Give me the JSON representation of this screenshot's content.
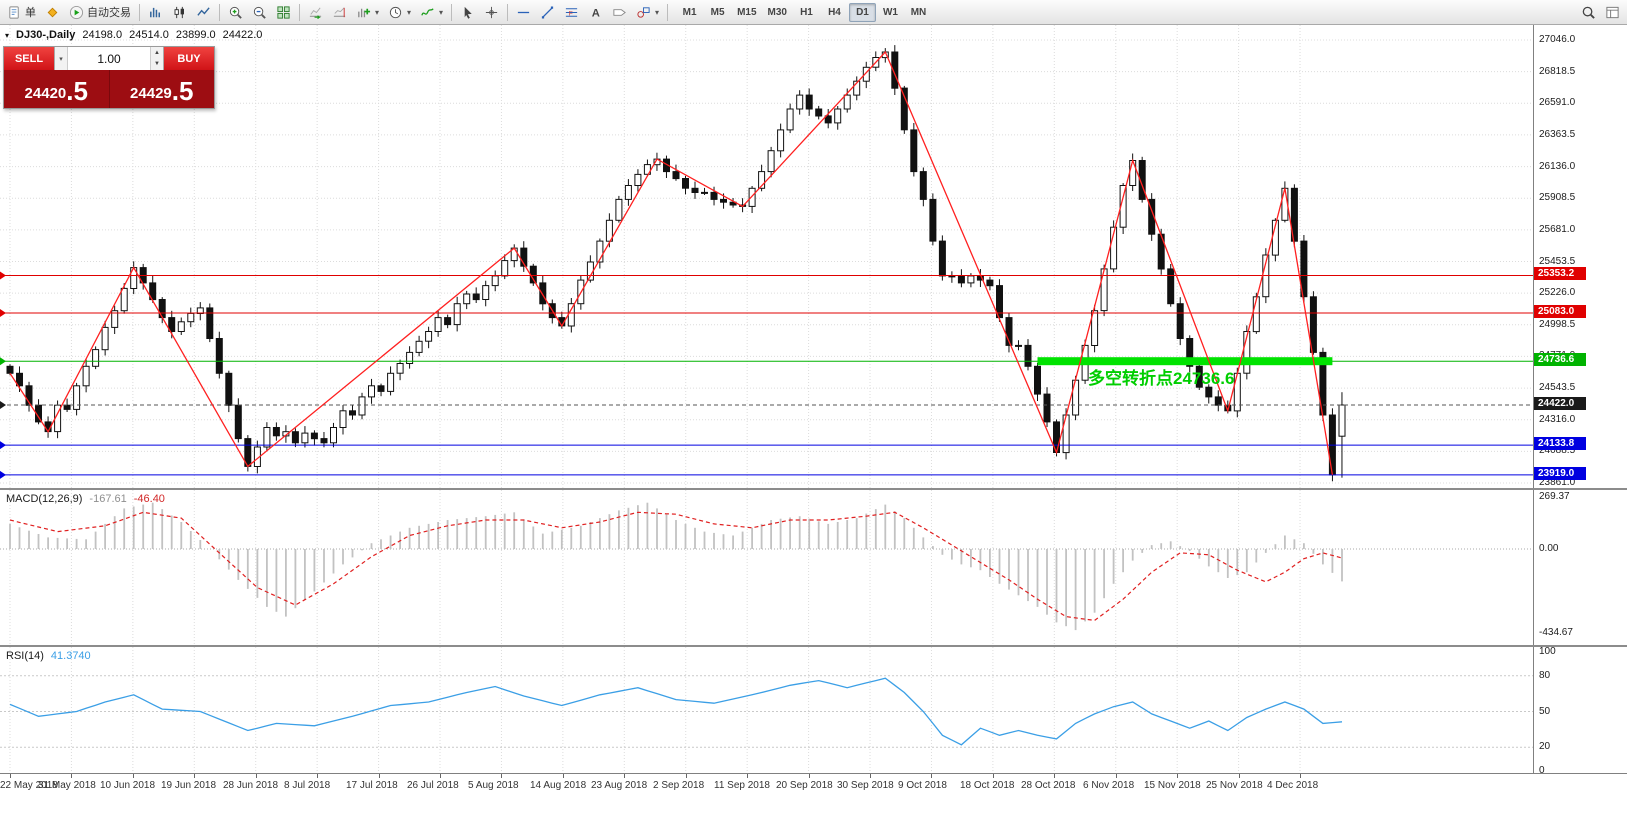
{
  "glyphs": {
    "dropdown": "▾",
    "spin_up": "▲",
    "spin_down": "▼",
    "marker": "▾"
  },
  "toolbar": {
    "items": [
      {
        "id": "new-order",
        "glyph": "doc",
        "label": "单"
      },
      {
        "id": "mql5",
        "glyph": "diamond"
      },
      {
        "id": "autotrade",
        "glyph": "play",
        "label": "自动交易"
      },
      {
        "sep": true
      },
      {
        "id": "bar-chart",
        "glyph": "bars"
      },
      {
        "id": "candle-chart",
        "glyph": "candles"
      },
      {
        "id": "line-chart",
        "glyph": "linechart"
      },
      {
        "sep": true
      },
      {
        "id": "zoom-in",
        "glyph": "zoomin"
      },
      {
        "id": "zoom-out",
        "glyph": "zoomout"
      },
      {
        "id": "tile-windows",
        "glyph": "tile"
      },
      {
        "sep": true
      },
      {
        "id": "auto-scroll",
        "glyph": "scroll"
      },
      {
        "id": "chart-shift",
        "glyph": "shift"
      },
      {
        "id": "new-chart",
        "glyph": "newchart",
        "dropdown": true
      },
      {
        "id": "period",
        "glyph": "clock",
        "dropdown": true
      },
      {
        "id": "indicators",
        "glyph": "indicator",
        "dropdown": true
      },
      {
        "sep": true
      },
      {
        "id": "cursor",
        "glyph": "cursor"
      },
      {
        "id": "crosshair",
        "glyph": "crosshair"
      },
      {
        "sep": true
      },
      {
        "id": "horizontal-line",
        "glyph": "hline"
      },
      {
        "id": "trendline",
        "glyph": "trendline"
      },
      {
        "id": "fibonacci",
        "glyph": "fibo"
      },
      {
        "id": "text",
        "glyph": "textA"
      },
      {
        "id": "label",
        "glyph": "label"
      },
      {
        "id": "shapes",
        "glyph": "shapes",
        "dropdown": true
      },
      {
        "sep": true
      }
    ],
    "timeframes": [
      "M1",
      "M5",
      "M15",
      "M30",
      "H1",
      "H4",
      "D1",
      "W1",
      "MN"
    ],
    "active_timeframe": "D1",
    "right_items": [
      {
        "id": "search",
        "glyph": "search"
      },
      {
        "id": "data-window",
        "glyph": "panelwin"
      }
    ]
  },
  "chart": {
    "symbol_info": {
      "symbol": "DJ30-,Daily",
      "open": "24198.0",
      "high": "24514.0",
      "low": "23899.0",
      "close": "24422.0"
    },
    "trade_panel": {
      "sell_label": "SELL",
      "buy_label": "BUY",
      "volume": "1.00",
      "sell_price": {
        "main": "24420",
        "frac": ".5"
      },
      "buy_price": {
        "main": "24429",
        "frac": ".5"
      }
    },
    "annotation": {
      "text": "多空转折点24736.6"
    },
    "colors": {
      "bull": "#ffffff",
      "bear": "#111111",
      "wick": "#111111",
      "zigzag": "#ff2020",
      "grid": "#dcdcdc",
      "band": "#00e300",
      "macd_hist": "#c2c2c2",
      "macd_signal": "#e02020",
      "rsi_line": "#3b9fe6"
    }
  },
  "indicators": {
    "macd": {
      "name": "MACD(12,26,9)",
      "value1": "-167.61",
      "value2": "-46.40"
    },
    "rsi": {
      "name": "RSI(14)",
      "value": "41.3740"
    }
  },
  "chart_data": [
    {
      "type": "candlestick",
      "symbol": "DJ30",
      "timeframe": "Daily",
      "title": "DJ30-,Daily",
      "y_axis_ticks": [
        27046.0,
        26818.5,
        26591.0,
        26363.5,
        26136.0,
        25908.5,
        25681.0,
        25453.5,
        25226.0,
        24998.5,
        24771.0,
        24543.5,
        24316.0,
        24088.5,
        23861.0
      ],
      "ylim": [
        23790,
        27120
      ],
      "x_tick_labels": [
        "22 May 2018",
        "31 May 2018",
        "10 Jun 2018",
        "19 Jun 2018",
        "28 Jun 2018",
        "8 Jul 2018",
        "17 Jul 2018",
        "26 Jul 2018",
        "5 Aug 2018",
        "14 Aug 2018",
        "23 Aug 2018",
        "2 Sep 2018",
        "11 Sep 2018",
        "20 Sep 2018",
        "30 Sep 2018",
        "9 Oct 2018",
        "18 Oct 2018",
        "28 Oct 2018",
        "6 Nov 2018",
        "15 Nov 2018",
        "25 Nov 2018",
        "4 Dec 2018"
      ],
      "levels": [
        {
          "price": 25353.2,
          "label": "25353.2",
          "color": "#e00000",
          "kind": "resistance"
        },
        {
          "price": 25083.0,
          "label": "25083.0",
          "color": "#e00000",
          "kind": "resistance"
        },
        {
          "price": 24736.6,
          "label": "24736.6",
          "color": "#00b300",
          "kind": "pivot",
          "band": {
            "from_index": 108,
            "to_index": 139
          }
        },
        {
          "price": 24422.0,
          "label": "24422.0",
          "color": "#1a1a1a",
          "kind": "current"
        },
        {
          "price": 24133.8,
          "label": "24133.8",
          "color": "#0000e0",
          "kind": "support"
        },
        {
          "price": 23919.0,
          "label": "23919.0",
          "color": "#0000e0",
          "kind": "support"
        }
      ],
      "closes": [
        24650,
        24560,
        24420,
        24300,
        24230,
        24420,
        24390,
        24560,
        24700,
        24820,
        24980,
        25100,
        25260,
        25410,
        25300,
        25180,
        25050,
        24950,
        25020,
        25080,
        25120,
        24900,
        24650,
        24420,
        24180,
        23980,
        24120,
        24260,
        24200,
        24230,
        24150,
        24220,
        24180,
        24150,
        24260,
        24380,
        24350,
        24480,
        24560,
        24520,
        24650,
        24720,
        24800,
        24880,
        24950,
        25050,
        25000,
        25150,
        25220,
        25180,
        25280,
        25350,
        25460,
        25550,
        25420,
        25300,
        25150,
        25050,
        24990,
        25150,
        25320,
        25450,
        25600,
        25750,
        25900,
        26000,
        26080,
        26150,
        26190,
        26100,
        26050,
        25980,
        25950,
        25950,
        25900,
        25880,
        25860,
        25850,
        25980,
        26100,
        26250,
        26400,
        26550,
        26650,
        26550,
        26500,
        26450,
        26550,
        26650,
        26750,
        26850,
        26920,
        26960,
        26700,
        26400,
        26100,
        25900,
        25600,
        25350,
        25350,
        25300,
        25350,
        25320,
        25280,
        25050,
        24850,
        24850,
        24700,
        24500,
        24300,
        24080,
        24350,
        24600,
        24850,
        25100,
        25400,
        25700,
        26000,
        26180,
        25900,
        25650,
        25400,
        25150,
        24900,
        24700,
        24550,
        24480,
        24420,
        24380,
        24650,
        24950,
        25200,
        25500,
        25750,
        25980,
        25600,
        25200,
        24800,
        24350,
        23920,
        24422
      ],
      "last_candle": {
        "open": 24198.0,
        "high": 24514.0,
        "low": 23899.0,
        "close": 24422.0
      },
      "zigzag_points": [
        [
          0,
          24650
        ],
        [
          4,
          24230
        ],
        [
          13,
          25410
        ],
        [
          25,
          23980
        ],
        [
          53,
          25550
        ],
        [
          58,
          24990
        ],
        [
          68,
          26190
        ],
        [
          77,
          25850
        ],
        [
          92,
          26960
        ],
        [
          110,
          24080
        ],
        [
          118,
          26180
        ],
        [
          128,
          24380
        ],
        [
          134,
          25980
        ],
        [
          139,
          23920
        ]
      ]
    },
    {
      "type": "bar",
      "title": "MACD(12,26,9)",
      "values": [
        -167.61,
        -46.4
      ],
      "y_ticks": [
        {
          "v": 269.37,
          "label": "269.37"
        },
        {
          "v": 0,
          "label": "0.00"
        },
        {
          "v": -434.67,
          "label": "-434.67"
        }
      ],
      "histogram_anchors": [
        [
          0,
          130
        ],
        [
          4,
          60
        ],
        [
          8,
          50
        ],
        [
          12,
          210
        ],
        [
          15,
          240
        ],
        [
          18,
          140
        ],
        [
          21,
          0
        ],
        [
          24,
          -160
        ],
        [
          27,
          -300
        ],
        [
          29,
          -350
        ],
        [
          32,
          -220
        ],
        [
          35,
          -80
        ],
        [
          38,
          30
        ],
        [
          42,
          110
        ],
        [
          46,
          150
        ],
        [
          50,
          170
        ],
        [
          53,
          190
        ],
        [
          56,
          80
        ],
        [
          60,
          120
        ],
        [
          64,
          200
        ],
        [
          67,
          240
        ],
        [
          70,
          150
        ],
        [
          73,
          90
        ],
        [
          76,
          70
        ],
        [
          80,
          150
        ],
        [
          83,
          170
        ],
        [
          86,
          130
        ],
        [
          89,
          160
        ],
        [
          92,
          230
        ],
        [
          94,
          160
        ],
        [
          96,
          60
        ],
        [
          98,
          -30
        ],
        [
          100,
          -80
        ],
        [
          102,
          -110
        ],
        [
          104,
          -180
        ],
        [
          106,
          -240
        ],
        [
          108,
          -300
        ],
        [
          110,
          -380
        ],
        [
          112,
          -420
        ],
        [
          114,
          -330
        ],
        [
          116,
          -180
        ],
        [
          118,
          -60
        ],
        [
          120,
          20
        ],
        [
          122,
          40
        ],
        [
          124,
          -10
        ],
        [
          126,
          -90
        ],
        [
          128,
          -150
        ],
        [
          130,
          -120
        ],
        [
          132,
          -20
        ],
        [
          134,
          70
        ],
        [
          136,
          30
        ],
        [
          138,
          -80
        ],
        [
          140,
          -167.61
        ]
      ],
      "signal_anchors": [
        [
          0,
          150
        ],
        [
          5,
          90
        ],
        [
          10,
          120
        ],
        [
          14,
          190
        ],
        [
          18,
          160
        ],
        [
          22,
          -20
        ],
        [
          26,
          -200
        ],
        [
          30,
          -290
        ],
        [
          34,
          -180
        ],
        [
          38,
          -40
        ],
        [
          42,
          70
        ],
        [
          46,
          120
        ],
        [
          50,
          150
        ],
        [
          54,
          150
        ],
        [
          58,
          110
        ],
        [
          62,
          140
        ],
        [
          66,
          190
        ],
        [
          70,
          180
        ],
        [
          74,
          130
        ],
        [
          78,
          110
        ],
        [
          82,
          150
        ],
        [
          86,
          150
        ],
        [
          90,
          170
        ],
        [
          93,
          190
        ],
        [
          96,
          110
        ],
        [
          99,
          20
        ],
        [
          102,
          -70
        ],
        [
          105,
          -160
        ],
        [
          108,
          -260
        ],
        [
          111,
          -350
        ],
        [
          114,
          -370
        ],
        [
          117,
          -260
        ],
        [
          120,
          -120
        ],
        [
          123,
          -20
        ],
        [
          126,
          -30
        ],
        [
          129,
          -110
        ],
        [
          132,
          -170
        ],
        [
          134,
          -120
        ],
        [
          136,
          -50
        ],
        [
          138,
          -20
        ],
        [
          140,
          -46.4
        ]
      ]
    },
    {
      "type": "line",
      "title": "RSI(14)",
      "value": 41.374,
      "y_ticks": [
        {
          "v": 100,
          "label": "100"
        },
        {
          "v": 80,
          "label": "80"
        },
        {
          "v": 50,
          "label": "50"
        },
        {
          "v": 20,
          "label": "20"
        },
        {
          "v": 0,
          "label": "0"
        }
      ],
      "level_lines": [
        80,
        50,
        20
      ],
      "rsi_anchors": [
        [
          0,
          56
        ],
        [
          3,
          46
        ],
        [
          7,
          50
        ],
        [
          10,
          58
        ],
        [
          13,
          64
        ],
        [
          16,
          52
        ],
        [
          20,
          50
        ],
        [
          25,
          34
        ],
        [
          28,
          40
        ],
        [
          32,
          38
        ],
        [
          36,
          46
        ],
        [
          40,
          55
        ],
        [
          44,
          58
        ],
        [
          48,
          66
        ],
        [
          51,
          71
        ],
        [
          54,
          63
        ],
        [
          58,
          55
        ],
        [
          62,
          64
        ],
        [
          66,
          70
        ],
        [
          70,
          60
        ],
        [
          74,
          57
        ],
        [
          78,
          64
        ],
        [
          82,
          72
        ],
        [
          85,
          76
        ],
        [
          88,
          70
        ],
        [
          92,
          78
        ],
        [
          94,
          66
        ],
        [
          96,
          50
        ],
        [
          98,
          30
        ],
        [
          100,
          22
        ],
        [
          102,
          36
        ],
        [
          104,
          30
        ],
        [
          106,
          34
        ],
        [
          108,
          30
        ],
        [
          110,
          27
        ],
        [
          112,
          40
        ],
        [
          114,
          48
        ],
        [
          116,
          54
        ],
        [
          118,
          58
        ],
        [
          120,
          48
        ],
        [
          122,
          42
        ],
        [
          124,
          36
        ],
        [
          126,
          42
        ],
        [
          128,
          34
        ],
        [
          130,
          45
        ],
        [
          132,
          52
        ],
        [
          134,
          58
        ],
        [
          136,
          52
        ],
        [
          138,
          40
        ],
        [
          140,
          41.37
        ]
      ]
    }
  ]
}
